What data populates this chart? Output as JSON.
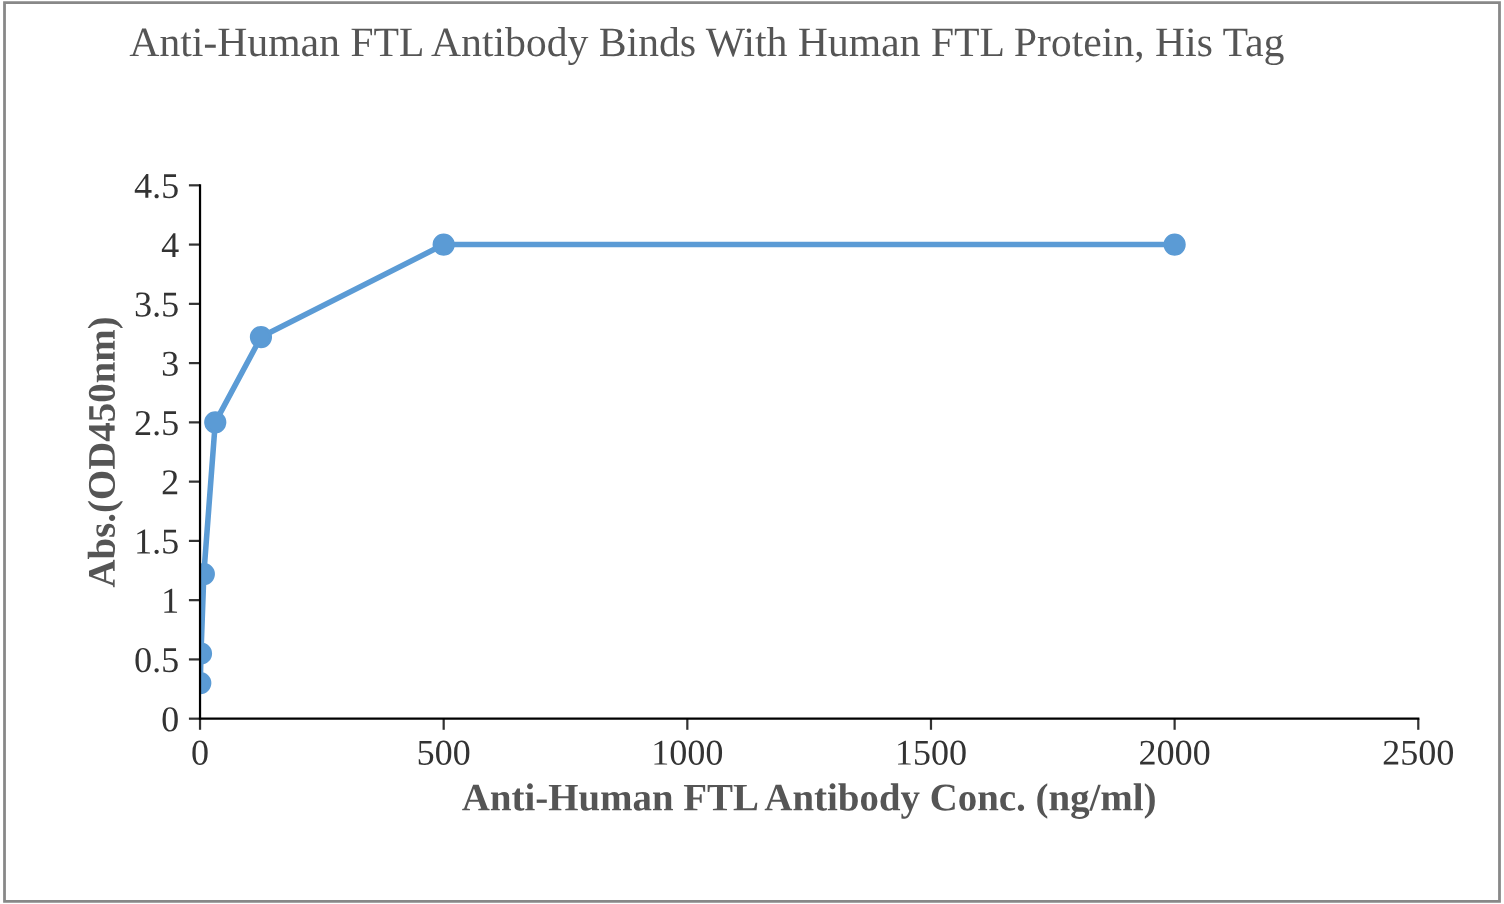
{
  "chart_data": {
    "type": "line",
    "title": "Anti-Human FTL Antibody Binds With Human FTL Protein, His Tag",
    "xlabel": "Anti-Human FTL Antibody Conc. (ng/ml)",
    "ylabel": "Abs.(OD450nm)",
    "series": [
      {
        "color": "#5b9bd5",
        "x": [
          0.49,
          1.95,
          7.81,
          31.25,
          125,
          500,
          2000
        ],
        "values": [
          0.3,
          0.55,
          1.22,
          2.5,
          3.22,
          4.0,
          4.0
        ]
      }
    ],
    "xlim": [
      0,
      2500
    ],
    "xticks": [
      0,
      500,
      1000,
      1500,
      2000,
      2500
    ],
    "ylim": [
      0,
      4.5
    ],
    "yticks": [
      0,
      0.5,
      1,
      1.5,
      2,
      2.5,
      3,
      3.5,
      4,
      4.5
    ],
    "grid": false,
    "legend": false,
    "marker": "circle",
    "line_style": "solid"
  }
}
